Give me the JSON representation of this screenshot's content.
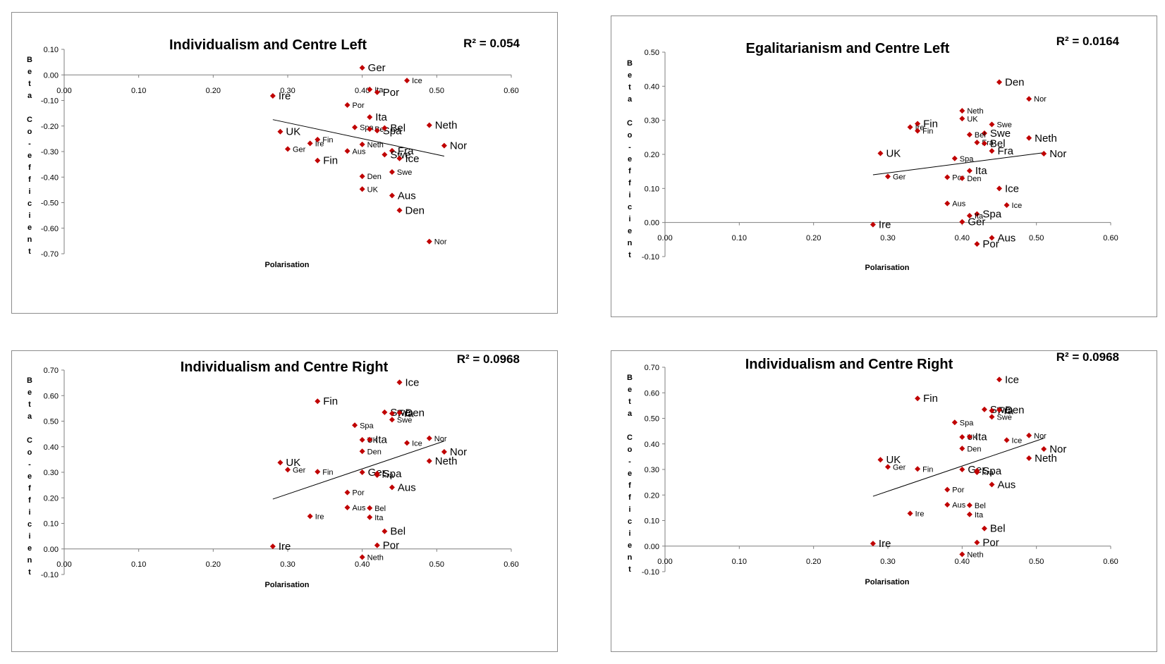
{
  "chart_data": [
    {
      "type": "scatter",
      "title": "Individualism and Centre Left",
      "annotation": "R² = 0.054",
      "xlabel": "Polarisation",
      "ylabel": "Beta Co-efficient",
      "xlim": [
        0,
        0.6
      ],
      "ylim": [
        -0.7,
        0.1
      ],
      "x_ticks": [
        "0.00",
        "0.10",
        "0.20",
        "0.30",
        "0.40",
        "0.50",
        "0.60"
      ],
      "y_ticks": [
        "0.10",
        "0.00",
        "-0.10",
        "-0.20",
        "-0.30",
        "-0.40",
        "-0.50",
        "-0.60",
        "-0.70"
      ],
      "trendline": [
        [
          0.28,
          -0.175
        ],
        [
          0.51,
          -0.318
        ]
      ],
      "marker_color": "#c00000",
      "points": [
        {
          "x": 0.4,
          "y": 0.028,
          "label": "Ger",
          "size": "large"
        },
        {
          "x": 0.46,
          "y": -0.022,
          "label": "Ice",
          "size": "small"
        },
        {
          "x": 0.41,
          "y": -0.057,
          "label": "Ita",
          "size": "small"
        },
        {
          "x": 0.42,
          "y": -0.068,
          "label": "Por",
          "size": "large"
        },
        {
          "x": 0.28,
          "y": -0.082,
          "label": "Ire",
          "size": "large"
        },
        {
          "x": 0.38,
          "y": -0.118,
          "label": "Por",
          "size": "small"
        },
        {
          "x": 0.41,
          "y": -0.165,
          "label": "Ita",
          "size": "large"
        },
        {
          "x": 0.49,
          "y": -0.197,
          "label": "Neth",
          "size": "large"
        },
        {
          "x": 0.39,
          "y": -0.205,
          "label": "Spa",
          "size": "small"
        },
        {
          "x": 0.41,
          "y": -0.212,
          "label": "Bel",
          "size": "small"
        },
        {
          "x": 0.42,
          "y": -0.218,
          "label": "Spa",
          "size": "large"
        },
        {
          "x": 0.43,
          "y": -0.208,
          "label": "Bel",
          "size": "large"
        },
        {
          "x": 0.29,
          "y": -0.222,
          "label": "UK",
          "size": "large"
        },
        {
          "x": 0.34,
          "y": -0.253,
          "label": "Fin",
          "size": "small"
        },
        {
          "x": 0.33,
          "y": -0.268,
          "label": "Ire",
          "size": "small"
        },
        {
          "x": 0.4,
          "y": -0.272,
          "label": "Neth",
          "size": "small"
        },
        {
          "x": 0.51,
          "y": -0.277,
          "label": "Nor",
          "size": "large"
        },
        {
          "x": 0.3,
          "y": -0.29,
          "label": "Ger",
          "size": "small"
        },
        {
          "x": 0.38,
          "y": -0.298,
          "label": "Aus",
          "size": "small"
        },
        {
          "x": 0.44,
          "y": -0.297,
          "label": "Fra",
          "size": "large"
        },
        {
          "x": 0.43,
          "y": -0.312,
          "label": "Swe",
          "size": "large"
        },
        {
          "x": 0.45,
          "y": -0.327,
          "label": "Ice",
          "size": "large"
        },
        {
          "x": 0.34,
          "y": -0.335,
          "label": "Fin",
          "size": "large"
        },
        {
          "x": 0.44,
          "y": -0.38,
          "label": "Swe",
          "size": "small"
        },
        {
          "x": 0.4,
          "y": -0.397,
          "label": "Den",
          "size": "small"
        },
        {
          "x": 0.4,
          "y": -0.447,
          "label": "UK",
          "size": "small"
        },
        {
          "x": 0.44,
          "y": -0.472,
          "label": "Aus",
          "size": "large"
        },
        {
          "x": 0.45,
          "y": -0.53,
          "label": "Den",
          "size": "large"
        },
        {
          "x": 0.49,
          "y": -0.652,
          "label": "Nor",
          "size": "small"
        }
      ]
    },
    {
      "type": "scatter",
      "title": "Egalitarianism and Centre Left",
      "annotation": "R² = 0.0164",
      "xlabel": "Polarisation",
      "ylabel": "Beta Co-efficient",
      "xlim": [
        0,
        0.6
      ],
      "ylim": [
        -0.1,
        0.5
      ],
      "x_ticks": [
        "0.00",
        "0.10",
        "0.20",
        "0.30",
        "0.40",
        "0.50",
        "0.60"
      ],
      "y_ticks": [
        "0.50",
        "0.40",
        "0.30",
        "0.20",
        "0.10",
        "0.00",
        "-0.10"
      ],
      "trendline": [
        [
          0.28,
          0.14
        ],
        [
          0.51,
          0.205
        ]
      ],
      "marker_color": "#c00000",
      "points": [
        {
          "x": 0.45,
          "y": 0.412,
          "label": "Den",
          "size": "large"
        },
        {
          "x": 0.49,
          "y": 0.363,
          "label": "Nor",
          "size": "small"
        },
        {
          "x": 0.4,
          "y": 0.328,
          "label": "Neth",
          "size": "small"
        },
        {
          "x": 0.4,
          "y": 0.305,
          "label": "UK",
          "size": "small"
        },
        {
          "x": 0.44,
          "y": 0.288,
          "label": "Swe",
          "size": "small"
        },
        {
          "x": 0.34,
          "y": 0.29,
          "label": "Fin",
          "size": "large"
        },
        {
          "x": 0.33,
          "y": 0.28,
          "label": "Ire",
          "size": "small"
        },
        {
          "x": 0.34,
          "y": 0.269,
          "label": "Fin",
          "size": "small"
        },
        {
          "x": 0.43,
          "y": 0.262,
          "label": "Swe",
          "size": "large"
        },
        {
          "x": 0.41,
          "y": 0.258,
          "label": "Bel",
          "size": "small"
        },
        {
          "x": 0.49,
          "y": 0.248,
          "label": "Neth",
          "size": "large"
        },
        {
          "x": 0.42,
          "y": 0.235,
          "label": "Fra",
          "size": "small"
        },
        {
          "x": 0.43,
          "y": 0.232,
          "label": "Bel",
          "size": "large"
        },
        {
          "x": 0.44,
          "y": 0.21,
          "label": "Fra",
          "size": "large"
        },
        {
          "x": 0.29,
          "y": 0.203,
          "label": "UK",
          "size": "large"
        },
        {
          "x": 0.51,
          "y": 0.202,
          "label": "Nor",
          "size": "large"
        },
        {
          "x": 0.39,
          "y": 0.188,
          "label": "Spa",
          "size": "small"
        },
        {
          "x": 0.41,
          "y": 0.152,
          "label": "Ita",
          "size": "large"
        },
        {
          "x": 0.3,
          "y": 0.135,
          "label": "Ger",
          "size": "small"
        },
        {
          "x": 0.38,
          "y": 0.133,
          "label": "Por",
          "size": "small"
        },
        {
          "x": 0.4,
          "y": 0.13,
          "label": "Den",
          "size": "small"
        },
        {
          "x": 0.45,
          "y": 0.1,
          "label": "Ice",
          "size": "large"
        },
        {
          "x": 0.38,
          "y": 0.056,
          "label": "Aus",
          "size": "small"
        },
        {
          "x": 0.46,
          "y": 0.051,
          "label": "Ice",
          "size": "small"
        },
        {
          "x": 0.42,
          "y": 0.025,
          "label": "Spa",
          "size": "large"
        },
        {
          "x": 0.41,
          "y": 0.02,
          "label": "Ita",
          "size": "small"
        },
        {
          "x": 0.4,
          "y": 0.002,
          "label": "Ger",
          "size": "large"
        },
        {
          "x": 0.28,
          "y": -0.006,
          "label": "Ire",
          "size": "large"
        },
        {
          "x": 0.44,
          "y": -0.045,
          "label": "Aus",
          "size": "large"
        },
        {
          "x": 0.42,
          "y": -0.063,
          "label": "Por",
          "size": "large"
        }
      ]
    },
    {
      "type": "scatter",
      "title": "Individualism and Centre Right",
      "annotation": "R² = 0.0968",
      "xlabel": "Polarisation",
      "ylabel": "Beta Co-efficient",
      "xlim": [
        0,
        0.6
      ],
      "ylim": [
        -0.1,
        0.7
      ],
      "x_ticks": [
        "0.00",
        "0.10",
        "0.20",
        "0.30",
        "0.40",
        "0.50",
        "0.60"
      ],
      "y_ticks": [
        "0.70",
        "0.60",
        "0.50",
        "0.40",
        "0.30",
        "0.20",
        "0.10",
        "0.00",
        "-0.10"
      ],
      "trendline": [
        [
          0.28,
          0.195
        ],
        [
          0.51,
          0.422
        ]
      ],
      "marker_color": "#c00000",
      "points": [
        {
          "x": 0.45,
          "y": 0.652,
          "label": "Ice",
          "size": "large"
        },
        {
          "x": 0.34,
          "y": 0.578,
          "label": "Fin",
          "size": "large"
        },
        {
          "x": 0.43,
          "y": 0.535,
          "label": "Swe",
          "size": "large"
        },
        {
          "x": 0.44,
          "y": 0.53,
          "label": "Fra",
          "size": "large"
        },
        {
          "x": 0.45,
          "y": 0.533,
          "label": "Den",
          "size": "large"
        },
        {
          "x": 0.44,
          "y": 0.506,
          "label": "Swe",
          "size": "small"
        },
        {
          "x": 0.39,
          "y": 0.484,
          "label": "Spa",
          "size": "small"
        },
        {
          "x": 0.49,
          "y": 0.433,
          "label": "Nor",
          "size": "small"
        },
        {
          "x": 0.4,
          "y": 0.427,
          "label": "UK",
          "size": "small"
        },
        {
          "x": 0.41,
          "y": 0.428,
          "label": "Ita",
          "size": "large"
        },
        {
          "x": 0.46,
          "y": 0.415,
          "label": "Ice",
          "size": "small"
        },
        {
          "x": 0.4,
          "y": 0.382,
          "label": "Den",
          "size": "small"
        },
        {
          "x": 0.51,
          "y": 0.38,
          "label": "Nor",
          "size": "large"
        },
        {
          "x": 0.49,
          "y": 0.344,
          "label": "Neth",
          "size": "large"
        },
        {
          "x": 0.29,
          "y": 0.338,
          "label": "UK",
          "size": "large"
        },
        {
          "x": 0.3,
          "y": 0.31,
          "label": "Ger",
          "size": "small"
        },
        {
          "x": 0.34,
          "y": 0.302,
          "label": "Fin",
          "size": "small"
        },
        {
          "x": 0.4,
          "y": 0.3,
          "label": "Ger",
          "size": "large"
        },
        {
          "x": 0.42,
          "y": 0.295,
          "label": "Spa",
          "size": "large"
        },
        {
          "x": 0.42,
          "y": 0.289,
          "label": "Fra",
          "size": "small"
        },
        {
          "x": 0.44,
          "y": 0.241,
          "label": "Aus",
          "size": "large"
        },
        {
          "x": 0.38,
          "y": 0.221,
          "label": "Por",
          "size": "small"
        },
        {
          "x": 0.38,
          "y": 0.162,
          "label": "Aus",
          "size": "small"
        },
        {
          "x": 0.41,
          "y": 0.16,
          "label": "Bel",
          "size": "small"
        },
        {
          "x": 0.33,
          "y": 0.128,
          "label": "Ire",
          "size": "small"
        },
        {
          "x": 0.41,
          "y": 0.124,
          "label": "Ita",
          "size": "small"
        },
        {
          "x": 0.43,
          "y": 0.069,
          "label": "Bel",
          "size": "large"
        },
        {
          "x": 0.42,
          "y": 0.014,
          "label": "Por",
          "size": "large"
        },
        {
          "x": 0.28,
          "y": 0.01,
          "label": "Ire",
          "size": "large"
        },
        {
          "x": 0.4,
          "y": -0.032,
          "label": "Neth",
          "size": "small"
        }
      ]
    },
    {
      "type": "scatter",
      "title": "Individualism and Centre Right",
      "annotation": "R² = 0.0968",
      "xlabel": "Polarisation",
      "ylabel": "Beta Co-efficient",
      "xlim": [
        0,
        0.6
      ],
      "ylim": [
        -0.1,
        0.7
      ],
      "x_ticks": [
        "0.00",
        "0.10",
        "0.20",
        "0.30",
        "0.40",
        "0.50",
        "0.60"
      ],
      "y_ticks": [
        "0.70",
        "0.60",
        "0.50",
        "0.40",
        "0.30",
        "0.20",
        "0.10",
        "0.00",
        "-0.10"
      ],
      "trendline": [
        [
          0.28,
          0.195
        ],
        [
          0.51,
          0.422
        ]
      ],
      "marker_color": "#c00000",
      "points": [
        {
          "x": 0.45,
          "y": 0.652,
          "label": "Ice",
          "size": "large"
        },
        {
          "x": 0.34,
          "y": 0.578,
          "label": "Fin",
          "size": "large"
        },
        {
          "x": 0.43,
          "y": 0.535,
          "label": "Swe",
          "size": "large"
        },
        {
          "x": 0.44,
          "y": 0.53,
          "label": "Fra",
          "size": "large"
        },
        {
          "x": 0.45,
          "y": 0.533,
          "label": "Den",
          "size": "large"
        },
        {
          "x": 0.44,
          "y": 0.506,
          "label": "Swe",
          "size": "small"
        },
        {
          "x": 0.39,
          "y": 0.484,
          "label": "Spa",
          "size": "small"
        },
        {
          "x": 0.49,
          "y": 0.433,
          "label": "Nor",
          "size": "small"
        },
        {
          "x": 0.4,
          "y": 0.427,
          "label": "UK",
          "size": "small"
        },
        {
          "x": 0.41,
          "y": 0.428,
          "label": "Ita",
          "size": "large"
        },
        {
          "x": 0.46,
          "y": 0.415,
          "label": "Ice",
          "size": "small"
        },
        {
          "x": 0.4,
          "y": 0.382,
          "label": "Den",
          "size": "small"
        },
        {
          "x": 0.51,
          "y": 0.38,
          "label": "Nor",
          "size": "large"
        },
        {
          "x": 0.49,
          "y": 0.344,
          "label": "Neth",
          "size": "large"
        },
        {
          "x": 0.29,
          "y": 0.338,
          "label": "UK",
          "size": "large"
        },
        {
          "x": 0.3,
          "y": 0.31,
          "label": "Ger",
          "size": "small"
        },
        {
          "x": 0.34,
          "y": 0.302,
          "label": "Fin",
          "size": "small"
        },
        {
          "x": 0.4,
          "y": 0.3,
          "label": "Ger",
          "size": "large"
        },
        {
          "x": 0.42,
          "y": 0.295,
          "label": "Spa",
          "size": "large"
        },
        {
          "x": 0.42,
          "y": 0.289,
          "label": "Fra",
          "size": "small"
        },
        {
          "x": 0.44,
          "y": 0.241,
          "label": "Aus",
          "size": "large"
        },
        {
          "x": 0.38,
          "y": 0.221,
          "label": "Por",
          "size": "small"
        },
        {
          "x": 0.38,
          "y": 0.162,
          "label": "Aus",
          "size": "small"
        },
        {
          "x": 0.41,
          "y": 0.16,
          "label": "Bel",
          "size": "small"
        },
        {
          "x": 0.33,
          "y": 0.128,
          "label": "Ire",
          "size": "small"
        },
        {
          "x": 0.41,
          "y": 0.124,
          "label": "Ita",
          "size": "small"
        },
        {
          "x": 0.43,
          "y": 0.069,
          "label": "Bel",
          "size": "large"
        },
        {
          "x": 0.42,
          "y": 0.014,
          "label": "Por",
          "size": "large"
        },
        {
          "x": 0.28,
          "y": 0.01,
          "label": "Ire",
          "size": "large"
        },
        {
          "x": 0.4,
          "y": -0.032,
          "label": "Neth",
          "size": "small"
        }
      ]
    }
  ]
}
